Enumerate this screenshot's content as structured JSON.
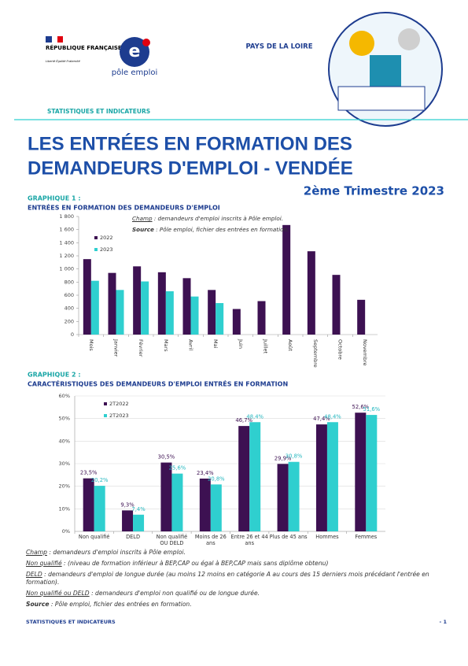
{
  "header": {
    "republic": "RÉPUBLIQUE FRANÇAISE",
    "motto": "Liberté Égalité Fraternité",
    "brand": "pôle emploi",
    "region": "PAYS DE LA LOIRE",
    "section": "STATISTIQUES ET INDICATEURS"
  },
  "title": {
    "line1": "LES ENTRÉES EN FORMATION DES",
    "line2": "DEMANDEURS D'EMPLOI - VENDÉE",
    "period": "2ème Trimestre 2023"
  },
  "chart_data": [
    {
      "type": "bar",
      "label": "GRAPHIQUE 1 :",
      "title": "ENTRÉES EN FORMATION DES DEMANDEURS D'EMPLOI",
      "annotations": [
        {
          "term": "Champ",
          "text": " : demandeurs d'emploi inscrits à Pôle emploi."
        },
        {
          "term": "Source",
          "text": " : Pôle emploi, fichier des entrées en formation."
        }
      ],
      "categories": [
        "Mois",
        "Janvier",
        "Février",
        "Mars",
        "Avril",
        "Mai",
        "Juin",
        "Juillet",
        "Août",
        "Septembre",
        "Octobre",
        "Novembre"
      ],
      "series": [
        {
          "name": "2022",
          "color": "#3d1152",
          "values": [
            1150,
            940,
            1040,
            950,
            860,
            680,
            390,
            510,
            1670,
            1270,
            910,
            530
          ]
        },
        {
          "name": "2023",
          "color": "#2fcfcf",
          "values": [
            820,
            680,
            810,
            660,
            580,
            480,
            null,
            null,
            null,
            null,
            null,
            null
          ]
        }
      ],
      "ylim": [
        0,
        1800
      ],
      "yticks": [
        0,
        200,
        400,
        600,
        800,
        {
          "value": 1000,
          "label": "1 000"
        },
        {
          "value": 1200,
          "label": "1 200"
        },
        {
          "value": 1400,
          "label": "1 400"
        },
        {
          "value": 1600,
          "label": "1 600"
        },
        {
          "value": 1800,
          "label": "1 800"
        }
      ],
      "grid": false,
      "legend": "top-left"
    },
    {
      "type": "bar",
      "label": "GRAPHIQUE 2 :",
      "title": "CARACTÉRISTIQUES DES DEMANDEURS D'EMPLOI ENTRÉS EN FORMATION",
      "categories": [
        "Non qualifié",
        "DELD",
        "Non qualifié OU DELD",
        "Moins de 26 ans",
        "Entre 26 et 44 ans",
        "Plus de 45 ans",
        "Hommes",
        "Femmes"
      ],
      "series": [
        {
          "name": "2T2022",
          "color": "#3d1152",
          "values": [
            23.5,
            9.3,
            30.5,
            23.4,
            46.7,
            29.9,
            47.4,
            52.6
          ],
          "value_labels": [
            "23,5%",
            "9,3%",
            "30,5%",
            "23,4%",
            "46,7%",
            "29,9%",
            "47,4%",
            "52,6%"
          ]
        },
        {
          "name": "2T2023",
          "color": "#2fcfcf",
          "values": [
            20.2,
            7.4,
            25.6,
            20.8,
            48.4,
            30.8,
            48.4,
            51.6
          ],
          "value_labels": [
            "20,2%",
            "7,4%",
            "25,6%",
            "20,8%",
            "48,4%",
            "30,8%",
            "48,4%",
            "51,6%"
          ]
        }
      ],
      "ylim": [
        0,
        60
      ],
      "yticks": [
        {
          "value": 0,
          "label": "0%"
        },
        {
          "value": 10,
          "label": "10%"
        },
        {
          "value": 20,
          "label": "20%"
        },
        {
          "value": 30,
          "label": "30%"
        },
        {
          "value": 40,
          "label": "40%"
        },
        {
          "value": 50,
          "label": "50%"
        },
        {
          "value": 60,
          "label": "60%"
        }
      ],
      "grid": true,
      "legend": "top-left"
    }
  ],
  "notes": [
    {
      "term": "Champ",
      "text": " : demandeurs d'emploi inscrits à Pôle emploi."
    },
    {
      "term": "Non qualifié",
      "text": " : (niveau de formation inférieur à BEP,CAP ou égal à BEP,CAP mais sans diplôme obtenu)"
    },
    {
      "term": "DELD",
      "text": " : demandeurs d'emploi de longue durée (au moins 12 moins en catégorie A au cours des 15 derniers mois précédant l'entrée en formation)."
    },
    {
      "term": "Non qualifié ou DELD",
      "text": " : demandeurs d'emploi non qualifié ou de longue durée."
    },
    {
      "term": "Source",
      "text": " : Pôle emploi, fichier des entrées en formation."
    }
  ],
  "footer": {
    "section": "STATISTIQUES ET INDICATEURS",
    "page": "- 1"
  }
}
